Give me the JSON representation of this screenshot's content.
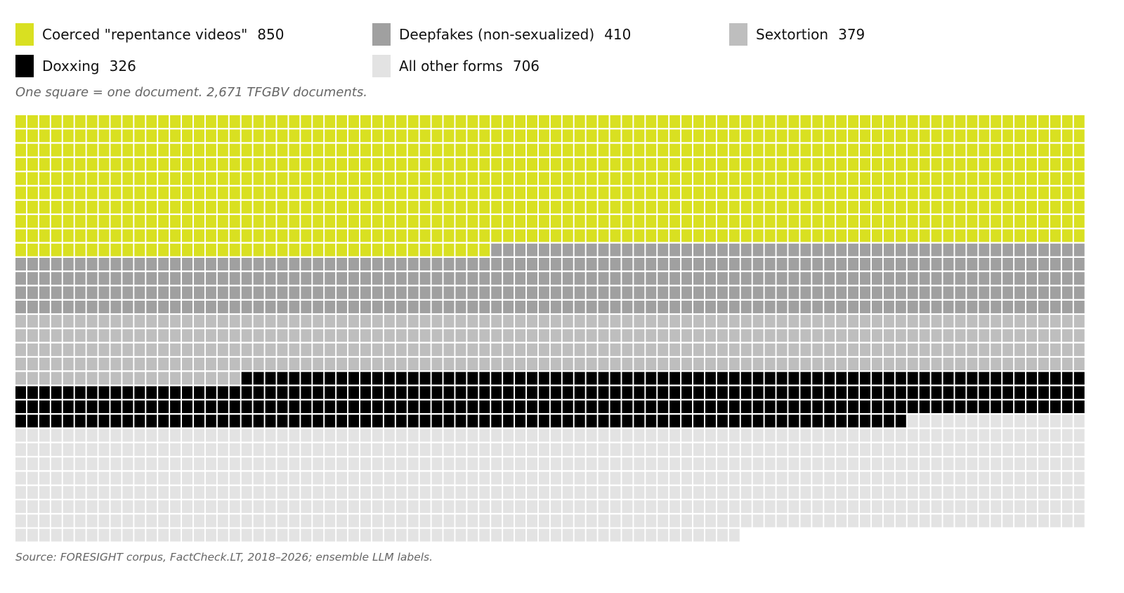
{
  "subtitle": "One square = one document. 2,671 TFGBV documents.",
  "source": "Source: FORESIGHT corpus, FactCheck.LT, 2018–2026; ensemble LLM labels.",
  "chart_data": {
    "type": "waffle",
    "unit": "One square = one document",
    "total": 2671,
    "columns": 90,
    "categories": [
      {
        "name": "Coerced \"repentance videos\"",
        "value": 850,
        "color": "#d9e021"
      },
      {
        "name": "Deepfakes (non-sexualized)",
        "value": 410,
        "color": "#a0a0a0"
      },
      {
        "name": "Sextortion",
        "value": 379,
        "color": "#bebebe"
      },
      {
        "name": "Doxxing",
        "value": 326,
        "color": "#000000"
      },
      {
        "name": "All other forms",
        "value": 706,
        "color": "#e3e3e3"
      }
    ]
  }
}
